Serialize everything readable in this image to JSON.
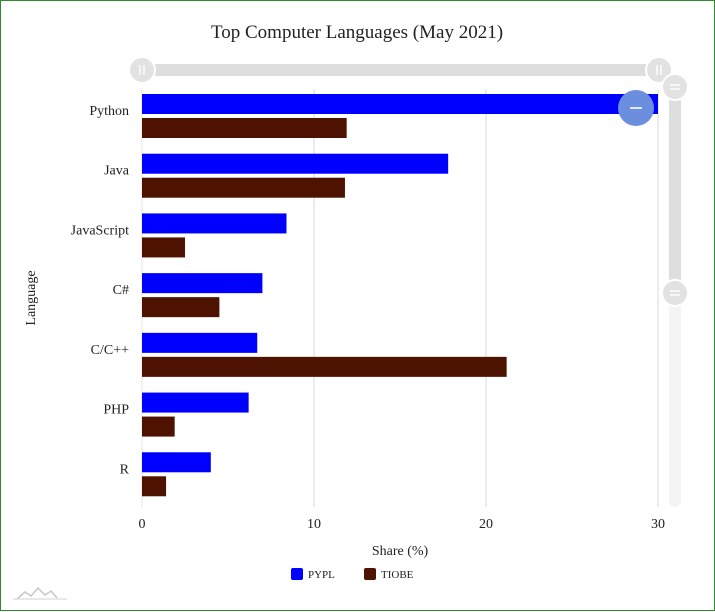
{
  "chart_data": {
    "type": "bar",
    "orientation": "horizontal",
    "title": "Top Computer Languages (May 2021)",
    "xlabel": "Share (%)",
    "ylabel": "Language",
    "categories": [
      "Python",
      "Java",
      "JavaScript",
      "C#",
      "C/C++",
      "PHP",
      "R"
    ],
    "series": [
      {
        "name": "PYPL",
        "color": "#0000ff",
        "values": [
          30.0,
          17.8,
          8.4,
          7.0,
          6.7,
          6.2,
          4.0
        ]
      },
      {
        "name": "TIOBE",
        "color": "#4d1200",
        "values": [
          11.9,
          11.8,
          2.5,
          4.5,
          21.2,
          1.9,
          1.4
        ]
      }
    ],
    "xlim": [
      0,
      30
    ],
    "xticks": [
      0,
      10,
      20,
      30
    ],
    "grid": true,
    "legend": "bottom-center"
  },
  "controls": {
    "x_scrollbar": {
      "range": [
        0,
        1
      ]
    },
    "y_scrollbar": {
      "range": [
        0,
        0.5
      ]
    }
  }
}
